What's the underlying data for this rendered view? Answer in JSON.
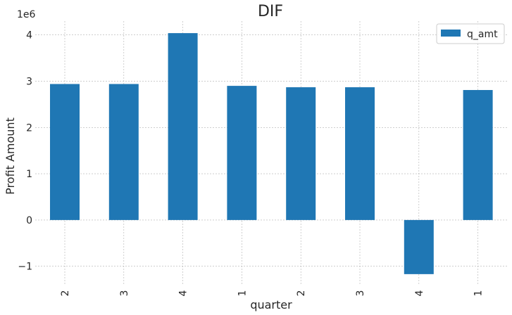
{
  "chart_data": {
    "type": "bar",
    "title": "DIF",
    "xlabel": "quarter",
    "ylabel": "Profit Amount",
    "offset_text": "1e6",
    "categories": [
      "2",
      "3",
      "4",
      "1",
      "2",
      "3",
      "4",
      "1"
    ],
    "series": [
      {
        "name": "q_amt",
        "color": "#1f77b4",
        "values": [
          2940000,
          2940000,
          4040000,
          2900000,
          2870000,
          2870000,
          -1170000,
          2810000
        ]
      }
    ],
    "ylim": [
      -1400000,
      4300000
    ],
    "yticks": [
      -1000000,
      0,
      1000000,
      2000000,
      3000000,
      4000000
    ],
    "ytick_labels": [
      "−1",
      "0",
      "1",
      "2",
      "3",
      "4"
    ],
    "grid": true,
    "legend_position": "top-right"
  }
}
